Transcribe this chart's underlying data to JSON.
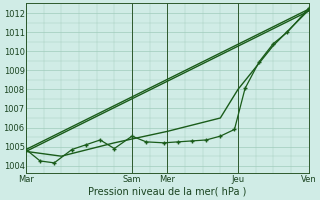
{
  "bg_color": "#d0ece6",
  "grid_color": "#a0ccbb",
  "line_color": "#1a5c1a",
  "marker_color": "#1a5c1a",
  "xlabel": "Pression niveau de la mer( hPa )",
  "ylim": [
    1003.6,
    1012.5
  ],
  "yticks": [
    1004,
    1005,
    1006,
    1007,
    1008,
    1009,
    1010,
    1011,
    1012
  ],
  "xtick_labels": [
    "Mar",
    "Sam",
    "Mer",
    "Jeu",
    "Ven"
  ],
  "xtick_positions": [
    0,
    3,
    4,
    6,
    8
  ],
  "vline_positions": [
    0,
    3,
    4,
    6,
    8
  ],
  "total_x_steps": 8,
  "lines": [
    {
      "x": [
        0,
        8.0
      ],
      "y": [
        1004.85,
        1012.2
      ],
      "marker": null,
      "markersize": 0,
      "linewidth": 1.0
    },
    {
      "x": [
        0,
        8.0
      ],
      "y": [
        1004.75,
        1012.1
      ],
      "marker": null,
      "markersize": 0,
      "linewidth": 1.0
    },
    {
      "x": [
        0,
        1.0,
        2.5,
        4.0,
        5.5,
        6.0,
        7.0,
        8.0
      ],
      "y": [
        1004.75,
        1004.5,
        1005.2,
        1005.8,
        1006.5,
        1008.0,
        1010.3,
        1012.15
      ],
      "marker": null,
      "markersize": 0,
      "linewidth": 1.0
    },
    {
      "x": [
        0,
        0.4,
        0.8,
        1.3,
        1.7,
        2.1,
        2.5,
        3.0,
        3.4,
        3.9,
        4.3,
        4.7,
        5.1,
        5.5,
        5.9,
        6.2,
        6.6,
        7.0,
        7.4,
        8.0
      ],
      "y": [
        1004.85,
        1004.25,
        1004.15,
        1004.85,
        1005.1,
        1005.35,
        1004.9,
        1005.55,
        1005.25,
        1005.2,
        1005.25,
        1005.3,
        1005.35,
        1005.55,
        1005.9,
        1008.05,
        1009.45,
        1010.4,
        1011.0,
        1012.25
      ],
      "marker": "+",
      "markersize": 3.5,
      "linewidth": 0.9
    }
  ]
}
